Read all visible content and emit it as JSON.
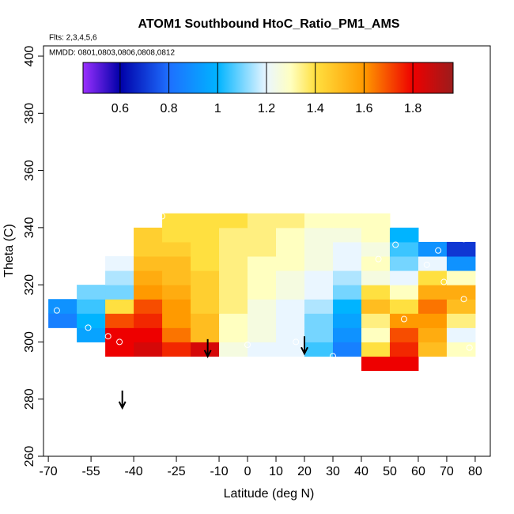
{
  "chart_data": {
    "type": "heatmap",
    "title": "ATOM1 Southbound HtoC_Ratio_PM1_AMS",
    "subtitle": "Flts: 2,3,4,5,6",
    "annotation": "MMDD: 0801,0803,0806,0808,0812",
    "x_label": "Latitude (deg N)",
    "y_label": "Theta (C)",
    "xlim": [
      -71.7,
      85.3
    ],
    "ylim": [
      260,
      403.6
    ],
    "xticks": [
      -70,
      -55,
      -40,
      -25,
      -10,
      0,
      10,
      20,
      30,
      40,
      50,
      60,
      70,
      80
    ],
    "yticks": [
      260,
      280,
      300,
      320,
      340,
      360,
      380,
      400
    ],
    "x": [
      -65,
      -55,
      -45,
      -35,
      -25,
      -15,
      -5,
      5,
      15,
      25,
      35,
      45,
      55,
      65,
      75
    ],
    "y": [
      292.5,
      297.5,
      302.5,
      307.5,
      312.5,
      317.5,
      322.5,
      327.5,
      332.5,
      337.5,
      342.5
    ],
    "z": [
      [
        null,
        null,
        null,
        null,
        null,
        null,
        null,
        null,
        null,
        null,
        null,
        1.8,
        1.8,
        null,
        null
      ],
      [
        null,
        null,
        1.8,
        1.85,
        1.75,
        1.85,
        1.25,
        1.2,
        1.2,
        1.05,
        0.85,
        1.4,
        1.75,
        1.5,
        1.3
      ],
      [
        null,
        0.95,
        1.8,
        1.8,
        1.65,
        1.5,
        1.3,
        1.25,
        1.2,
        1.1,
        0.9,
        1.3,
        1.7,
        1.55,
        1.2
      ],
      [
        0.85,
        1.0,
        1.7,
        1.75,
        1.6,
        1.5,
        1.3,
        1.25,
        1.2,
        1.1,
        0.95,
        1.35,
        1.6,
        1.6,
        1.35
      ],
      [
        0.9,
        1.05,
        1.4,
        1.7,
        1.6,
        1.45,
        1.35,
        1.25,
        1.2,
        1.15,
        1.0,
        1.5,
        1.4,
        1.65,
        1.5
      ],
      [
        null,
        1.1,
        1.1,
        1.6,
        1.55,
        1.45,
        1.35,
        1.3,
        1.25,
        1.2,
        1.1,
        1.4,
        1.3,
        1.55,
        1.55
      ],
      [
        null,
        null,
        1.15,
        1.55,
        1.5,
        1.45,
        1.35,
        1.3,
        1.25,
        1.2,
        1.15,
        1.25,
        1.2,
        1.4,
        1.3
      ],
      [
        null,
        null,
        1.2,
        1.5,
        1.5,
        1.4,
        1.35,
        1.3,
        1.3,
        1.25,
        1.2,
        1.3,
        1.1,
        1.2,
        0.9
      ],
      [
        null,
        null,
        null,
        1.45,
        1.45,
        1.4,
        1.35,
        1.35,
        1.3,
        1.25,
        1.2,
        1.25,
        1.05,
        0.9,
        0.7
      ],
      [
        null,
        null,
        null,
        1.45,
        1.4,
        1.4,
        1.35,
        1.35,
        1.3,
        1.25,
        1.25,
        1.3,
        1.0,
        null,
        null
      ],
      [
        null,
        null,
        null,
        null,
        1.4,
        1.4,
        1.4,
        1.35,
        1.35,
        1.3,
        1.3,
        1.3,
        null,
        null,
        null
      ]
    ],
    "points": {
      "x": [
        -67,
        -56,
        -49,
        -45,
        -30,
        0,
        17,
        30,
        46,
        52,
        55,
        63,
        67,
        69,
        76,
        76,
        78
      ],
      "y": [
        311,
        305,
        302,
        300,
        344,
        299,
        300,
        295,
        329,
        334,
        308,
        327,
        332,
        321,
        336,
        315,
        298
      ],
      "color": "#ffffff"
    },
    "arrows": {
      "x": [
        -44,
        -14,
        20
      ],
      "y": [
        283,
        301,
        302
      ]
    },
    "colorbar": {
      "lim": [
        0.448,
        1.965
      ],
      "ticks": [
        0.6,
        0.8,
        1.0,
        1.2,
        1.4,
        1.6,
        1.8
      ],
      "stops": [
        [
          0.448,
          "#9b30ff"
        ],
        [
          0.6,
          "#0000a8"
        ],
        [
          0.8,
          "#1e6fff"
        ],
        [
          1.0,
          "#00b4ff"
        ],
        [
          1.2,
          "#eaf6ff"
        ],
        [
          1.3,
          "#ffffc0"
        ],
        [
          1.4,
          "#ffe040"
        ],
        [
          1.6,
          "#ff9a00"
        ],
        [
          1.8,
          "#ee0000"
        ],
        [
          1.965,
          "#9b1c1c"
        ]
      ]
    }
  }
}
